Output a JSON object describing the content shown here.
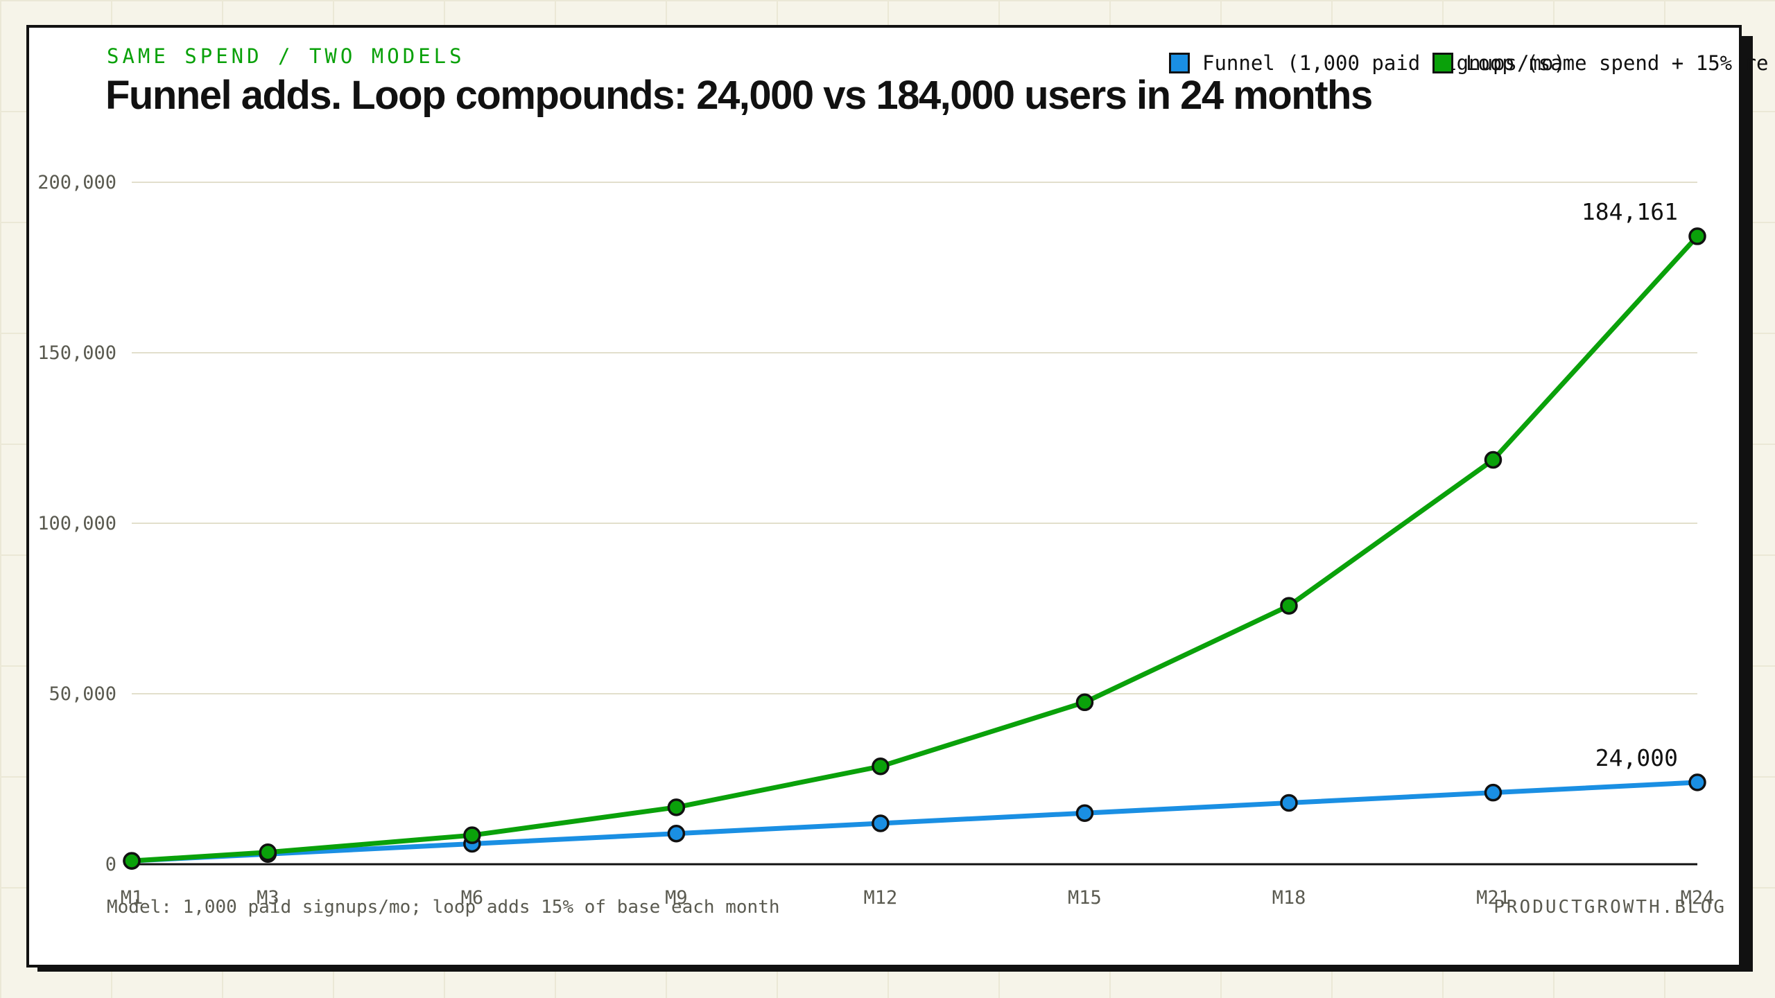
{
  "header": {
    "kicker": "SAME SPEND / TWO MODELS",
    "title": "Funnel adds. Loop compounds: 24,000 vs 184,000 users in 24 months"
  },
  "legend": {
    "items": [
      {
        "label": "Funnel (1,000 paid signups/mo)",
        "color": "#1a8fe3"
      },
      {
        "label": "Loop (same spend + 15% re",
        "color": "#0aa10a"
      }
    ]
  },
  "footer": {
    "note": "Model: 1,000 paid signups/mo; loop adds 15% of base each month",
    "source": "PRODUCTGROWTH.BLOG"
  },
  "chart_data": {
    "type": "line",
    "categories": [
      "M1",
      "M3",
      "M6",
      "M9",
      "M12",
      "M15",
      "M18",
      "M21",
      "M24"
    ],
    "x_index": [
      1,
      3,
      6,
      9,
      12,
      15,
      18,
      21,
      24
    ],
    "ylim": [
      0,
      200000
    ],
    "yticks": [
      0,
      50000,
      100000,
      150000,
      200000
    ],
    "ytick_labels": [
      "0",
      "50,000",
      "100,000",
      "150,000",
      "200,000"
    ],
    "grid": true,
    "legend_position": "top-right",
    "series": [
      {
        "name": "Funnel (1,000 paid signups/mo)",
        "color": "#1a8fe3",
        "values": [
          1000,
          3000,
          6000,
          9000,
          12000,
          15000,
          18000,
          21000,
          24000
        ],
        "end_label": "24,000"
      },
      {
        "name": "Loop (same spend + 15% re",
        "color": "#0aa10a",
        "values": [
          1000,
          3500,
          8500,
          16700,
          28700,
          47500,
          75800,
          118600,
          184161
        ],
        "end_label": "184,161"
      }
    ]
  }
}
